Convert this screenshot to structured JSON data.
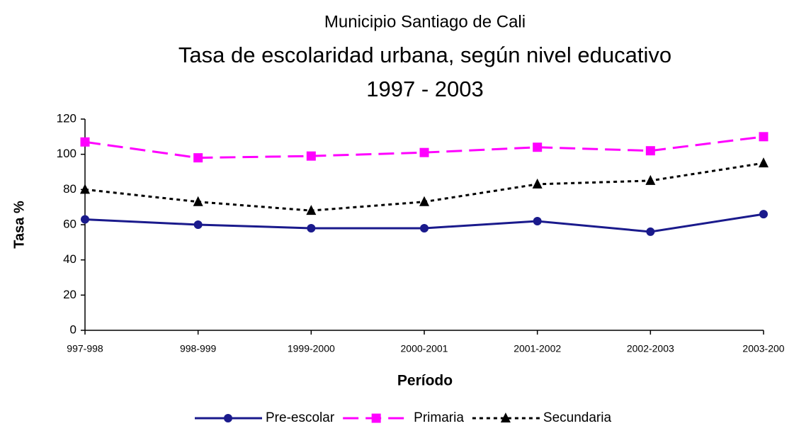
{
  "chart_data": {
    "type": "line",
    "subtitle": "Municipio Santiago de Cali",
    "title": "Tasa de escolaridad urbana, según nivel educativo",
    "period": "1997 - 2003",
    "y_label": "Tasa %",
    "x_label": "Período",
    "categories": [
      "997-998",
      "998-999",
      "1999-2000",
      "2000-2001",
      "2001-2002",
      "2002-2003",
      "2003-200"
    ],
    "series": [
      {
        "name": "Pre-escolar",
        "color": "#1a1a8c",
        "marker": "circle",
        "dash": "none",
        "values": [
          63,
          60,
          58,
          58,
          62,
          56,
          66
        ]
      },
      {
        "name": "Primaria",
        "color": "#ff00ff",
        "marker": "square",
        "dash": "22 10",
        "values": [
          107,
          98,
          99,
          101,
          104,
          102,
          110
        ]
      },
      {
        "name": "Secundaria",
        "color": "#000000",
        "marker": "triangle",
        "dash": "5 5",
        "values": [
          80,
          73,
          68,
          73,
          83,
          85,
          95
        ]
      }
    ],
    "ylim": [
      0,
      120
    ],
    "yticks": [
      0,
      20,
      40,
      60,
      80,
      100,
      120
    ]
  }
}
